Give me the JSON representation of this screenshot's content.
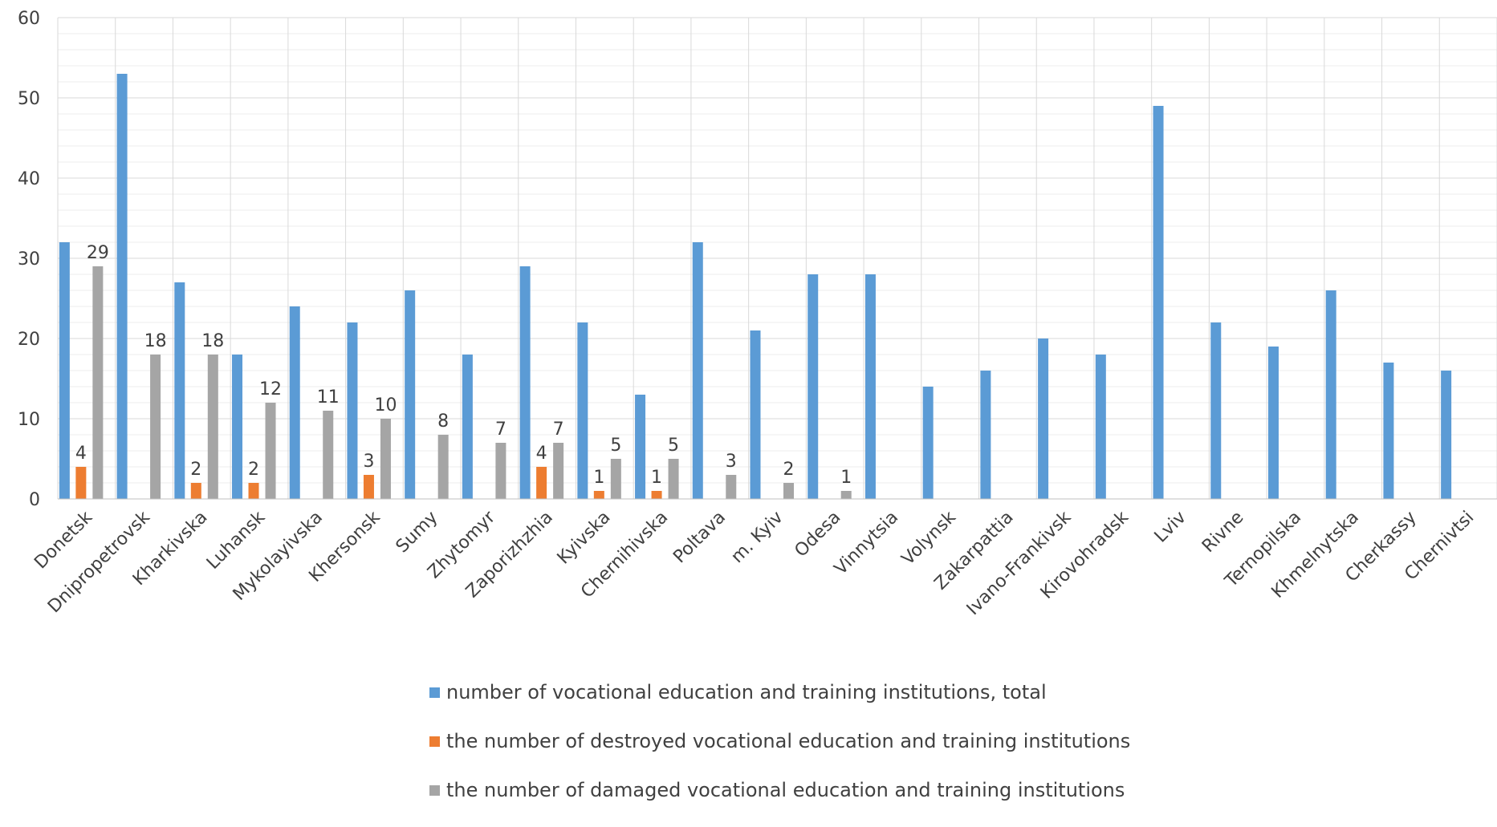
{
  "chart_data": {
    "type": "bar",
    "categories": [
      "Donetsk",
      "Dnipropetrovsk",
      "Kharkivska",
      "Luhansk",
      "Mykolayivska",
      "Khersonsk",
      "Sumy",
      "Zhytomyr",
      "Zaporizhzhia",
      "Kyivska",
      "Chernihivska",
      "Poltava",
      "m. Kyiv",
      "Odesa",
      "Vinnytsia",
      "Volynsk",
      "Zakarpattia",
      "Ivano-Frankivsk",
      "Kirovohradsk",
      "Lviv",
      "Rivne",
      "Ternopilska",
      "Khmelnytska",
      "Cherkassy",
      "Chernivtsi"
    ],
    "series": [
      {
        "name": "number of vocational education and training institutions, total",
        "color": "#5B9BD5",
        "values": [
          32,
          53,
          27,
          18,
          24,
          22,
          26,
          18,
          29,
          22,
          13,
          32,
          21,
          28,
          28,
          14,
          16,
          20,
          18,
          49,
          22,
          19,
          26,
          17,
          16
        ],
        "labels": [
          "",
          "",
          "",
          "",
          "",
          "",
          "",
          "",
          "",
          "",
          "",
          "",
          "",
          "",
          "",
          "",
          "",
          "",
          "",
          "",
          "",
          "",
          "",
          "",
          ""
        ]
      },
      {
        "name": "the number of destroyed  vocational education and training institutions",
        "color": "#ED7D31",
        "values": [
          4,
          0,
          2,
          2,
          0,
          3,
          0,
          0,
          4,
          1,
          1,
          0,
          0,
          0,
          0,
          0,
          0,
          0,
          0,
          0,
          0,
          0,
          0,
          0,
          0
        ],
        "labels": [
          "4",
          "",
          "2",
          "2",
          "",
          "3",
          "",
          "",
          "4",
          "1",
          "1",
          "",
          "",
          "",
          "",
          "",
          "",
          "",
          "",
          "",
          "",
          "",
          "",
          "",
          ""
        ]
      },
      {
        "name": "the number of damaged vocational education and training institutions",
        "color": "#A5A5A5",
        "values": [
          29,
          18,
          18,
          12,
          11,
          10,
          8,
          7,
          7,
          5,
          5,
          3,
          2,
          1,
          0,
          0,
          0,
          0,
          0,
          0,
          0,
          0,
          0,
          0,
          0
        ],
        "labels": [
          "29",
          "18",
          "18",
          "12",
          "11",
          "10",
          "8",
          "7",
          "7",
          "5",
          "5",
          "3",
          "2",
          "1",
          "",
          "",
          "",
          "",
          "",
          "",
          "",
          "",
          "",
          "",
          ""
        ]
      }
    ],
    "ylim": [
      0,
      60
    ],
    "yticks": [
      "0",
      "10",
      "20",
      "30",
      "40",
      "50",
      "60"
    ],
    "grid": true,
    "legend_position": "bottom"
  }
}
